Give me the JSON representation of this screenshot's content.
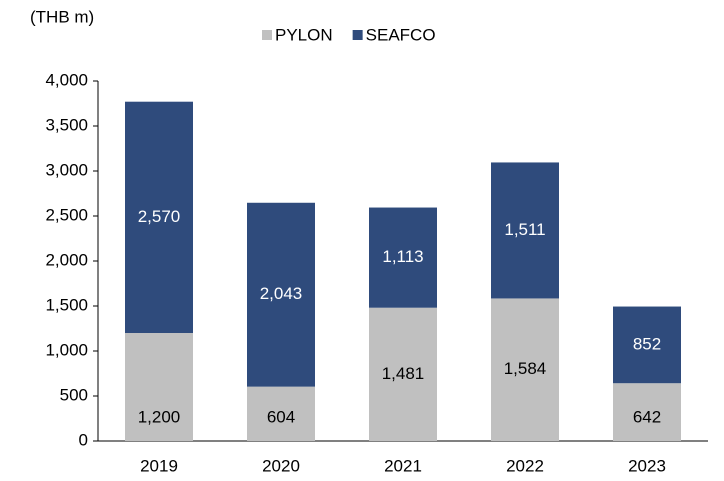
{
  "chart_data": {
    "type": "stacked_bar",
    "unit_label": "(THB m)",
    "categories": [
      "2019",
      "2020",
      "2021",
      "2022",
      "2023"
    ],
    "series": [
      {
        "name": "PYLON",
        "color": "#c0c0c0",
        "values": [
          1200,
          604,
          1481,
          1584,
          642
        ],
        "value_labels": [
          "1,200",
          "604",
          "1,481",
          "1,584",
          "642"
        ]
      },
      {
        "name": "SEAFCO",
        "color": "#2f4b7c",
        "values": [
          2570,
          2043,
          1113,
          1511,
          852
        ],
        "value_labels": [
          "2,570",
          "2,043",
          "1,113",
          "1,511",
          "852"
        ]
      }
    ],
    "ylim": [
      0,
      4000
    ],
    "yticks": [
      0,
      500,
      {
        "value": 1000,
        "label": "1,000"
      },
      {
        "value": 1500,
        "label": "1,500"
      },
      {
        "value": 2000,
        "label": "2,000"
      },
      {
        "value": 2500,
        "label": "2,500"
      },
      {
        "value": 3000,
        "label": "3,000"
      },
      {
        "value": 3500,
        "label": "3,500"
      },
      {
        "value": 4000,
        "label": "4,000"
      }
    ],
    "legend": "top"
  }
}
